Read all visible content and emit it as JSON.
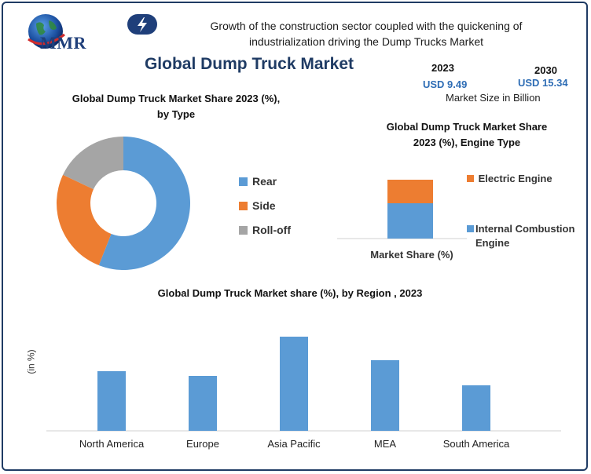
{
  "header": {
    "logo_text": "MMR",
    "headline_line1": "Growth of the construction sector coupled with the quickening of",
    "headline_line2": "industrialization driving the Dump Trucks Market",
    "title": "Global Dump Truck Market"
  },
  "market_size": {
    "year1": "2023",
    "value1": "USD 9.49",
    "year2": "2030",
    "value2": "USD 15.34",
    "caption": "Market Size in Billion"
  },
  "colors": {
    "blue": "#5b9bd5",
    "orange": "#ed7d31",
    "gray": "#a5a5a5",
    "navy": "#1f3b64"
  },
  "chart_data": [
    {
      "type": "pie",
      "title_line1": "Global Dump Truck Market Share 2023 (%),",
      "title_line2": "by Type",
      "labels": [
        "Rear",
        "Side",
        "Roll-off"
      ],
      "values": [
        56,
        26,
        18
      ],
      "colors": [
        "#5b9bd5",
        "#ed7d31",
        "#a5a5a5"
      ],
      "legend": "right"
    },
    {
      "type": "bar",
      "stacked": true,
      "title_line1": "Global  Dump Truck Market Share",
      "title_line2": "2023 (%), Engine Type",
      "xlabel": "Market Share (%)",
      "series": [
        {
          "name": "Internal Combustion Engine",
          "values": [
            60
          ],
          "color": "#5b9bd5"
        },
        {
          "name": "Electric Engine",
          "values": [
            40
          ],
          "color": "#ed7d31"
        }
      ],
      "ylim": [
        0,
        100
      ],
      "legend": "right"
    },
    {
      "type": "bar",
      "title": "Global Dump Truck Market share (%), by Region , 2023",
      "ylabel": "(in %)",
      "categories": [
        "North America",
        "Europe",
        "Asia Pacific",
        "MEA",
        "South America"
      ],
      "values": [
        19,
        17.5,
        30,
        22.5,
        14.5
      ],
      "ylim": [
        0,
        33
      ],
      "color": "#5b9bd5"
    }
  ]
}
